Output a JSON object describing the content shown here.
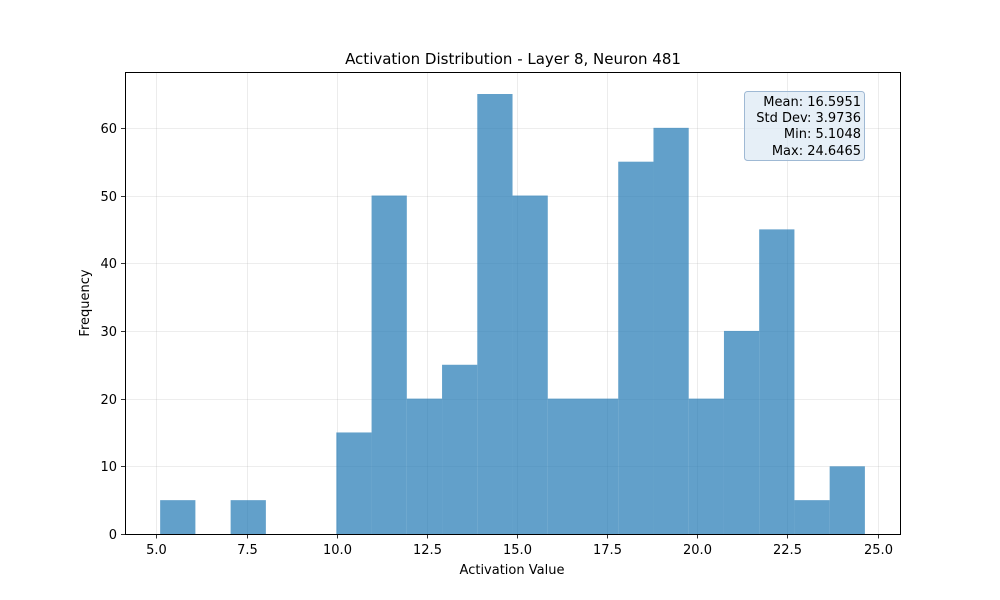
{
  "chart_data": {
    "type": "bar",
    "title": "Activation Distribution - Layer 8, Neuron 481",
    "xlabel": "Activation Value",
    "ylabel": "Frequency",
    "xlim": [
      4.13,
      25.62
    ],
    "ylim": [
      0,
      68.25
    ],
    "grid": true,
    "bar_color": "#1f77b4",
    "bar_alpha": 0.7,
    "xticks": [
      5.0,
      7.5,
      10.0,
      12.5,
      15.0,
      17.5,
      20.0,
      22.5,
      25.0
    ],
    "xtick_labels": [
      "5.0",
      "7.5",
      "10.0",
      "12.5",
      "15.0",
      "17.5",
      "20.0",
      "22.5",
      "25.0"
    ],
    "yticks": [
      0,
      10,
      20,
      30,
      40,
      50,
      60
    ],
    "ytick_labels": [
      "0",
      "10",
      "20",
      "30",
      "40",
      "50",
      "60"
    ],
    "bins": [
      {
        "start": 5.1048,
        "end": 6.0819,
        "count": 5
      },
      {
        "start": 6.0819,
        "end": 7.059,
        "count": 0
      },
      {
        "start": 7.059,
        "end": 8.0361,
        "count": 5
      },
      {
        "start": 8.0361,
        "end": 9.0132,
        "count": 0
      },
      {
        "start": 9.0132,
        "end": 9.9903,
        "count": 0
      },
      {
        "start": 9.9903,
        "end": 10.9674,
        "count": 15
      },
      {
        "start": 10.9674,
        "end": 11.9445,
        "count": 50
      },
      {
        "start": 11.9445,
        "end": 12.9216,
        "count": 20
      },
      {
        "start": 12.9216,
        "end": 13.8986,
        "count": 25
      },
      {
        "start": 13.8986,
        "end": 14.8757,
        "count": 65
      },
      {
        "start": 14.8757,
        "end": 15.8528,
        "count": 50
      },
      {
        "start": 15.8528,
        "end": 16.8299,
        "count": 20
      },
      {
        "start": 16.8299,
        "end": 17.807,
        "count": 20
      },
      {
        "start": 17.807,
        "end": 18.7841,
        "count": 55
      },
      {
        "start": 18.7841,
        "end": 19.7612,
        "count": 60
      },
      {
        "start": 19.7612,
        "end": 20.7383,
        "count": 20
      },
      {
        "start": 20.7383,
        "end": 21.7154,
        "count": 30
      },
      {
        "start": 21.7154,
        "end": 22.6925,
        "count": 45
      },
      {
        "start": 22.6925,
        "end": 23.6694,
        "count": 5
      },
      {
        "start": 23.6694,
        "end": 24.6465,
        "count": 10
      }
    ],
    "stats_box": {
      "placement": "top-right",
      "lines": [
        "Mean: 16.5951",
        "Std Dev: 3.9736",
        "Min: 5.1048",
        "Max: 24.6465"
      ],
      "background": "#dce8f4",
      "border": "#9fb9d4"
    }
  }
}
